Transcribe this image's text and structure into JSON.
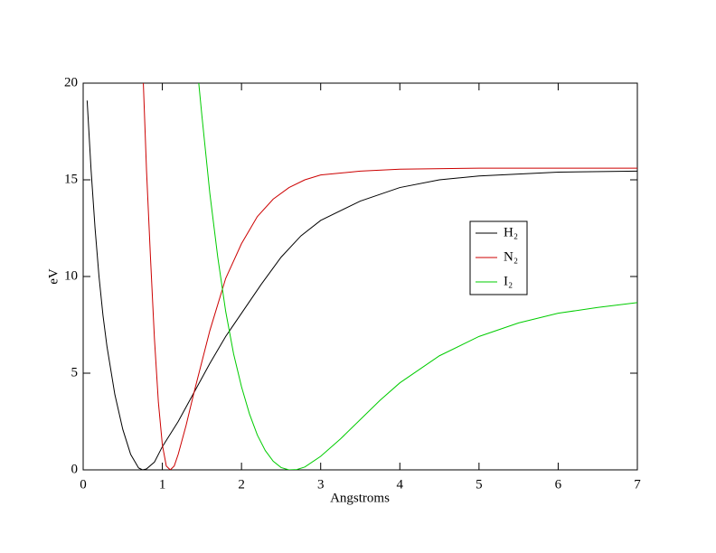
{
  "chart_data": {
    "type": "line",
    "xlabel": "Angstroms",
    "ylabel": "eV",
    "xlim": [
      0,
      7
    ],
    "ylim": [
      0,
      20
    ],
    "xticks": [
      0,
      1,
      2,
      3,
      4,
      5,
      6,
      7
    ],
    "yticks": [
      0,
      5,
      10,
      15,
      20
    ],
    "legend": "right",
    "series": [
      {
        "name": "H₂",
        "color": "#000000",
        "x": [
          0.05,
          0.1,
          0.15,
          0.2,
          0.25,
          0.3,
          0.4,
          0.5,
          0.6,
          0.7,
          0.75,
          0.8,
          0.9,
          1.0,
          1.2,
          1.4,
          1.6,
          1.8,
          2.0,
          2.25,
          2.5,
          2.75,
          3.0,
          3.5,
          4.0,
          4.5,
          5.0,
          6.0,
          7.0
        ],
        "values": [
          19.1,
          15.5,
          12.5,
          10.0,
          8.0,
          6.4,
          3.9,
          2.1,
          0.8,
          0.1,
          0,
          0.05,
          0.4,
          1.2,
          2.5,
          4.0,
          5.5,
          6.9,
          8.1,
          9.6,
          11.0,
          12.1,
          12.9,
          13.9,
          14.6,
          15.0,
          15.2,
          15.4,
          15.45
        ]
      },
      {
        "name": "N₂",
        "color": "#cc0000",
        "x": [
          0.76,
          0.8,
          0.85,
          0.9,
          0.95,
          1.0,
          1.05,
          1.1,
          1.15,
          1.2,
          1.3,
          1.4,
          1.5,
          1.6,
          1.8,
          2.0,
          2.2,
          2.4,
          2.6,
          2.8,
          3.0,
          3.5,
          4.0,
          5.0,
          7.0
        ],
        "values": [
          20,
          15.5,
          11.0,
          6.8,
          3.5,
          1.3,
          0.2,
          0,
          0.2,
          0.8,
          2.3,
          4.0,
          5.6,
          7.2,
          9.9,
          11.7,
          13.1,
          14.0,
          14.6,
          15.0,
          15.25,
          15.45,
          15.55,
          15.6,
          15.6
        ]
      },
      {
        "name": "I₂",
        "color": "#00cc00",
        "x": [
          1.46,
          1.5,
          1.6,
          1.7,
          1.8,
          1.9,
          2.0,
          2.1,
          2.2,
          2.3,
          2.4,
          2.5,
          2.6,
          2.7,
          2.8,
          3.0,
          3.25,
          3.5,
          3.75,
          4.0,
          4.5,
          5.0,
          5.5,
          6.0,
          6.5,
          7.0
        ],
        "values": [
          20,
          18.3,
          14.3,
          11.0,
          8.2,
          6.0,
          4.3,
          2.9,
          1.8,
          1.0,
          0.45,
          0.12,
          0,
          0.02,
          0.15,
          0.7,
          1.6,
          2.6,
          3.6,
          4.5,
          5.9,
          6.9,
          7.6,
          8.1,
          8.4,
          8.65
        ]
      }
    ]
  }
}
